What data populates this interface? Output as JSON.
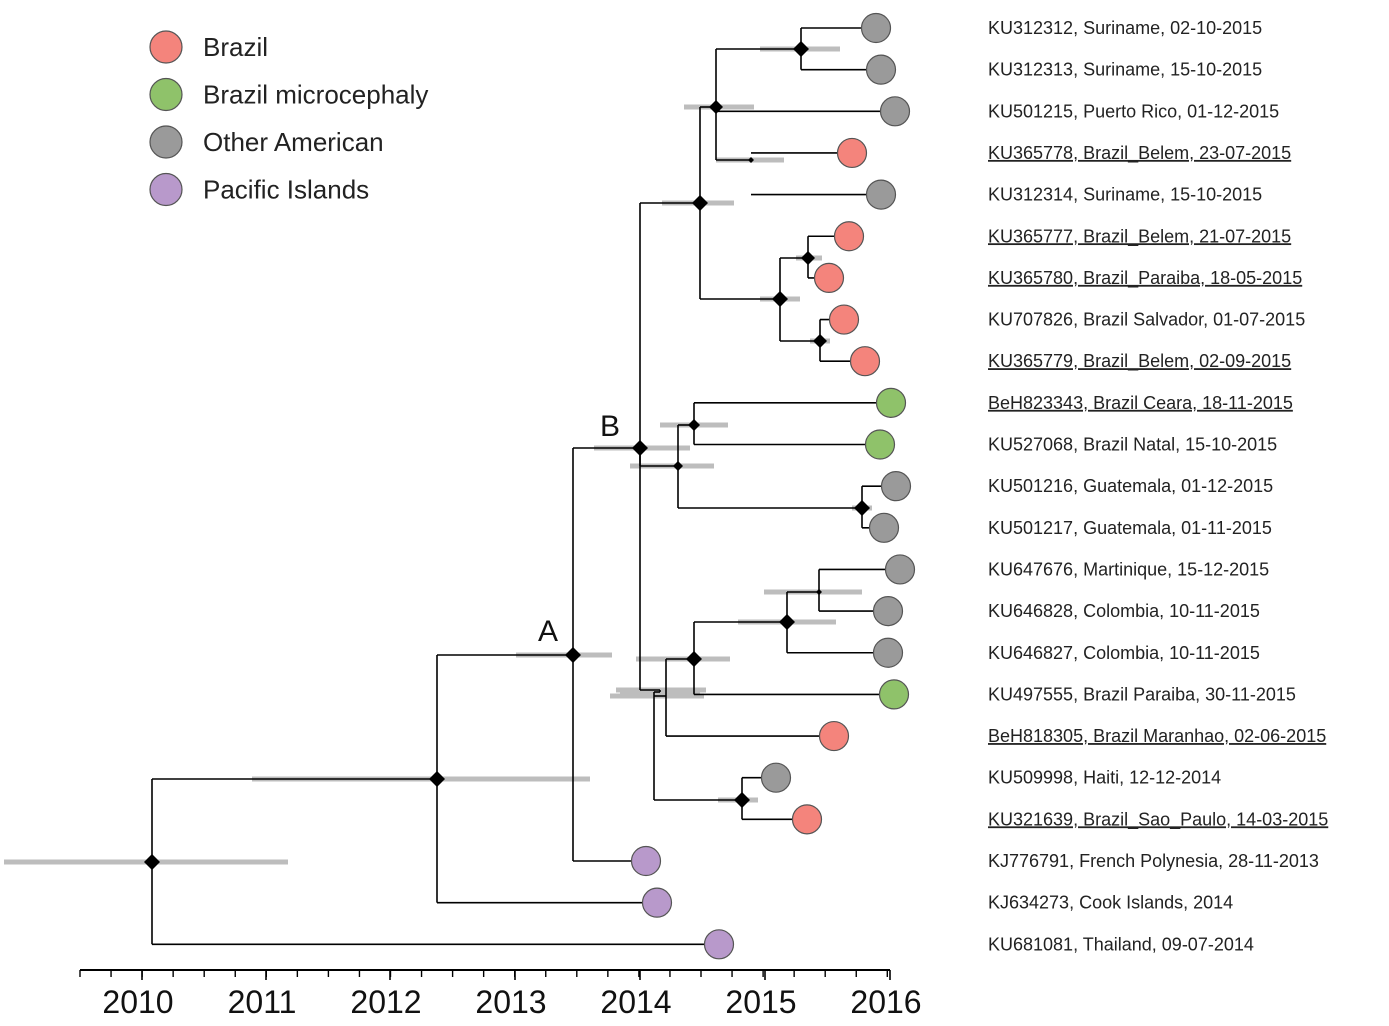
{
  "legend": [
    {
      "label": "Brazil",
      "color": "#f4847c"
    },
    {
      "label": "Brazil microcephaly",
      "color": "#8fc26a"
    },
    {
      "label": "Other American",
      "color": "#9a9a9a"
    },
    {
      "label": "Pacific Islands",
      "color": "#b899cb"
    }
  ],
  "node_labels": {
    "A": "A",
    "B": "B"
  },
  "axis": {
    "ticks": [
      "2010",
      "2011",
      "2012",
      "2013",
      "2014",
      "2015",
      "2016"
    ]
  },
  "leaves": [
    {
      "label": "KU312312, Suriname, 02-10-2015",
      "group": "Other American",
      "underline": false
    },
    {
      "label": "KU312313, Suriname, 15-10-2015",
      "group": "Other American",
      "underline": false
    },
    {
      "label": "KU501215, Puerto Rico, 01-12-2015",
      "group": "Other American",
      "underline": false
    },
    {
      "label": "KU365778, Brazil_Belem, 23-07-2015",
      "group": "Brazil",
      "underline": true
    },
    {
      "label": "KU312314, Suriname, 15-10-2015",
      "group": "Other American",
      "underline": false
    },
    {
      "label": "KU365777, Brazil_Belem, 21-07-2015",
      "group": "Brazil",
      "underline": true
    },
    {
      "label": "KU365780, Brazil_Paraiba, 18-05-2015",
      "group": "Brazil",
      "underline": true
    },
    {
      "label": "KU707826, Brazil Salvador, 01-07-2015",
      "group": "Brazil",
      "underline": false
    },
    {
      "label": "KU365779, Brazil_Belem, 02-09-2015",
      "group": "Brazil",
      "underline": true
    },
    {
      "label": "BeH823343, Brazil Ceara, 18-11-2015",
      "group": "Brazil microcephaly",
      "underline": true
    },
    {
      "label": "KU527068, Brazil Natal, 15-10-2015",
      "group": "Brazil microcephaly",
      "underline": false
    },
    {
      "label": "KU501216, Guatemala, 01-12-2015",
      "group": "Other American",
      "underline": false
    },
    {
      "label": "KU501217, Guatemala, 01-11-2015",
      "group": "Other American",
      "underline": false
    },
    {
      "label": "KU647676, Martinique, 15-12-2015",
      "group": "Other American",
      "underline": false
    },
    {
      "label": "KU646828, Colombia, 10-11-2015",
      "group": "Other American",
      "underline": false
    },
    {
      "label": "KU646827, Colombia, 10-11-2015",
      "group": "Other American",
      "underline": false
    },
    {
      "label": "KU497555, Brazil Paraiba, 30-11-2015",
      "group": "Brazil microcephaly",
      "underline": false
    },
    {
      "label": "BeH818305, Brazil Maranhao, 02-06-2015",
      "group": "Brazil",
      "underline": true
    },
    {
      "label": "KU509998, Haiti, 12-12-2014",
      "group": "Other American",
      "underline": false
    },
    {
      "label": "KU321639, Brazil_Sao_Paulo, 14-03-2015",
      "group": "Brazil",
      "underline": true
    },
    {
      "label": "KJ776791, French Polynesia, 28-11-2013",
      "group": "Pacific Islands",
      "underline": false
    },
    {
      "label": "KJ634273, Cook Islands, 2014",
      "group": "Pacific Islands",
      "underline": false
    },
    {
      "label": "KU681081, Thailand, 09-07-2014",
      "group": "Pacific Islands",
      "underline": false
    }
  ]
}
